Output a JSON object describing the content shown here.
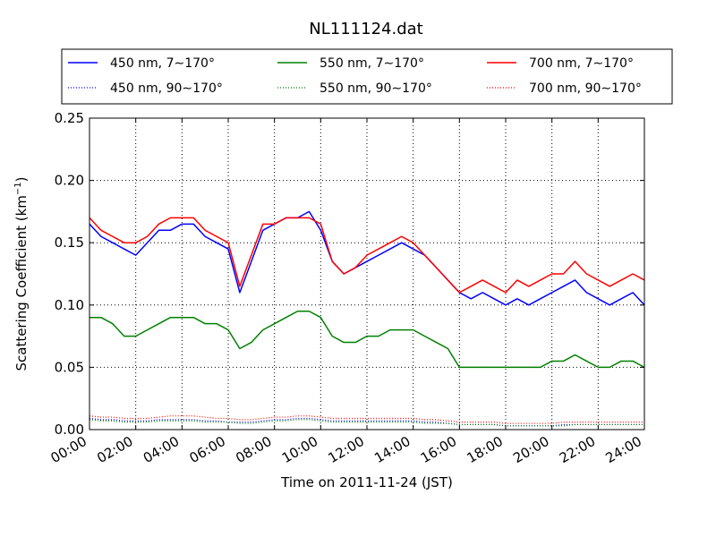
{
  "chart_data": {
    "type": "line",
    "title": "NL111124.dat",
    "xlabel": "Time on 2011-11-24 (JST)",
    "ylabel": "Scattering Coefficient (km",
    "ylabel_exp": "−1",
    "ylabel_close": ")",
    "xlim": [
      "00:00",
      "24:00"
    ],
    "ylim": [
      0.0,
      0.25
    ],
    "grid": true,
    "legend_placement": "top",
    "x_ticks": [
      "00:00",
      "02:00",
      "04:00",
      "06:00",
      "08:00",
      "10:00",
      "12:00",
      "14:00",
      "16:00",
      "18:00",
      "20:00",
      "22:00",
      "24:00"
    ],
    "y_ticks": [
      "0.00",
      "0.05",
      "0.10",
      "0.15",
      "0.20",
      "0.25"
    ],
    "x": [
      "00:00",
      "00:30",
      "01:00",
      "01:30",
      "02:00",
      "02:30",
      "03:00",
      "03:30",
      "04:00",
      "04:30",
      "05:00",
      "05:30",
      "06:00",
      "06:30",
      "07:00",
      "07:30",
      "08:00",
      "08:30",
      "09:00",
      "09:30",
      "10:00",
      "10:30",
      "11:00",
      "11:30",
      "12:00",
      "12:30",
      "13:00",
      "13:30",
      "14:00",
      "14:30",
      "15:00",
      "15:30",
      "16:00",
      "16:30",
      "17:00",
      "17:30",
      "18:00",
      "18:30",
      "19:00",
      "19:30",
      "20:00",
      "20:30",
      "21:00",
      "21:30",
      "22:00",
      "22:30",
      "23:00",
      "23:30",
      "24:00"
    ],
    "series": [
      {
        "name": "450 nm, 7∼170°",
        "color": "#0000ff",
        "style": "solid",
        "values": [
          0.165,
          0.155,
          0.15,
          0.145,
          0.14,
          0.15,
          0.16,
          0.16,
          0.165,
          0.165,
          0.155,
          0.15,
          0.145,
          0.11,
          0.135,
          0.16,
          0.165,
          0.17,
          0.17,
          0.175,
          0.16,
          0.135,
          0.125,
          0.13,
          0.135,
          0.14,
          0.145,
          0.15,
          0.145,
          0.14,
          0.13,
          0.12,
          0.11,
          0.105,
          0.11,
          0.105,
          0.1,
          0.105,
          0.1,
          0.105,
          0.11,
          0.115,
          0.12,
          0.11,
          0.105,
          0.1,
          0.105,
          0.11,
          0.1
        ]
      },
      {
        "name": "450 nm, 90∼170°",
        "color": "#0000ff",
        "style": "dotted",
        "values": [
          0.009,
          0.008,
          0.008,
          0.007,
          0.007,
          0.007,
          0.008,
          0.008,
          0.008,
          0.008,
          0.007,
          0.007,
          0.006,
          0.006,
          0.006,
          0.007,
          0.008,
          0.008,
          0.009,
          0.009,
          0.008,
          0.007,
          0.007,
          0.007,
          0.007,
          0.007,
          0.007,
          0.007,
          0.007,
          0.006,
          0.006,
          0.005,
          0.004,
          0.004,
          0.004,
          0.004,
          0.003,
          0.003,
          0.003,
          0.003,
          0.003,
          0.004,
          0.004,
          0.004,
          0.004,
          0.004,
          0.004,
          0.004,
          0.004
        ]
      },
      {
        "name": "550 nm, 7∼170°",
        "color": "#008000",
        "style": "solid",
        "values": [
          0.09,
          0.09,
          0.085,
          0.075,
          0.075,
          0.08,
          0.085,
          0.09,
          0.09,
          0.09,
          0.085,
          0.085,
          0.08,
          0.065,
          0.07,
          0.08,
          0.085,
          0.09,
          0.095,
          0.095,
          0.09,
          0.075,
          0.07,
          0.07,
          0.075,
          0.075,
          0.08,
          0.08,
          0.08,
          0.075,
          0.07,
          0.065,
          0.05,
          0.05,
          0.05,
          0.05,
          0.05,
          0.05,
          0.05,
          0.05,
          0.055,
          0.055,
          0.06,
          0.055,
          0.05,
          0.05,
          0.055,
          0.055,
          0.05
        ]
      },
      {
        "name": "550 nm, 90∼170°",
        "color": "#008000",
        "style": "dotted",
        "values": [
          0.008,
          0.007,
          0.007,
          0.006,
          0.006,
          0.006,
          0.007,
          0.007,
          0.007,
          0.007,
          0.006,
          0.006,
          0.006,
          0.005,
          0.005,
          0.006,
          0.007,
          0.007,
          0.008,
          0.008,
          0.007,
          0.006,
          0.006,
          0.006,
          0.006,
          0.006,
          0.006,
          0.006,
          0.006,
          0.005,
          0.005,
          0.005,
          0.004,
          0.004,
          0.004,
          0.004,
          0.003,
          0.003,
          0.003,
          0.003,
          0.003,
          0.003,
          0.004,
          0.004,
          0.004,
          0.004,
          0.004,
          0.004,
          0.004
        ]
      },
      {
        "name": "700 nm, 7∼170°",
        "color": "#ff0000",
        "style": "solid",
        "values": [
          0.17,
          0.16,
          0.155,
          0.15,
          0.15,
          0.155,
          0.165,
          0.17,
          0.17,
          0.17,
          0.16,
          0.155,
          0.15,
          0.115,
          0.14,
          0.165,
          0.165,
          0.17,
          0.17,
          0.17,
          0.165,
          0.135,
          0.125,
          0.13,
          0.14,
          0.145,
          0.15,
          0.155,
          0.15,
          0.14,
          0.13,
          0.12,
          0.11,
          0.115,
          0.12,
          0.115,
          0.11,
          0.12,
          0.115,
          0.12,
          0.125,
          0.125,
          0.135,
          0.125,
          0.12,
          0.115,
          0.12,
          0.125,
          0.12
        ]
      },
      {
        "name": "700 nm, 90∼170°",
        "color": "#ff0000",
        "style": "dotted",
        "values": [
          0.011,
          0.01,
          0.01,
          0.009,
          0.009,
          0.009,
          0.01,
          0.011,
          0.011,
          0.011,
          0.01,
          0.009,
          0.009,
          0.008,
          0.008,
          0.009,
          0.01,
          0.01,
          0.011,
          0.011,
          0.01,
          0.009,
          0.009,
          0.009,
          0.009,
          0.009,
          0.009,
          0.009,
          0.009,
          0.008,
          0.008,
          0.007,
          0.006,
          0.006,
          0.006,
          0.006,
          0.005,
          0.005,
          0.005,
          0.005,
          0.005,
          0.006,
          0.006,
          0.006,
          0.006,
          0.006,
          0.006,
          0.006,
          0.006
        ]
      }
    ]
  }
}
